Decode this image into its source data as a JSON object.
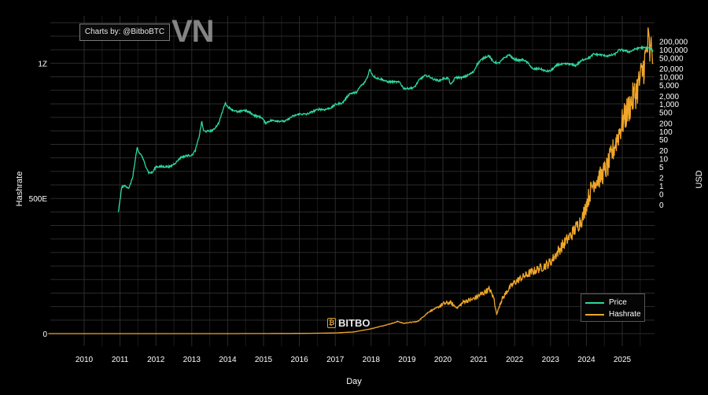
{
  "chart_data": {
    "type": "line",
    "xlabel": "Day",
    "ylabel_left": "Hashrate",
    "ylabel_right": "USD",
    "x_ticks": [
      "2010",
      "2011",
      "2012",
      "2013",
      "2014",
      "2015",
      "2016",
      "2017",
      "2018",
      "2019",
      "2020",
      "2021",
      "2022",
      "2023",
      "2024",
      "2025"
    ],
    "left_ticks": [
      {
        "label": "0",
        "value": 0
      },
      {
        "label": "500E",
        "value": 500
      },
      {
        "label": "1Z",
        "value": 1000
      }
    ],
    "right_ticks": [
      "200,000",
      "100,000",
      "50,000",
      "20,000",
      "10,000",
      "5,000",
      "2,000",
      "1,000",
      "500",
      "200",
      "100",
      "50",
      "20",
      "10",
      "5",
      "2",
      "1",
      "0",
      "0"
    ],
    "grid": true,
    "legend_position": "bottom-right",
    "series": [
      {
        "name": "Price",
        "color": "#2fd89a",
        "axis": "right",
        "points": [
          [
            2010.95,
            0.1
          ],
          [
            2011.0,
            0.3
          ],
          [
            2011.05,
            0.9
          ],
          [
            2011.15,
            1
          ],
          [
            2011.25,
            0.8
          ],
          [
            2011.35,
            2
          ],
          [
            2011.42,
            8
          ],
          [
            2011.48,
            25
          ],
          [
            2011.52,
            17
          ],
          [
            2011.6,
            13
          ],
          [
            2011.7,
            6
          ],
          [
            2011.8,
            3
          ],
          [
            2011.9,
            3
          ],
          [
            2012.0,
            5
          ],
          [
            2012.2,
            5
          ],
          [
            2012.4,
            5
          ],
          [
            2012.55,
            7
          ],
          [
            2012.7,
            11
          ],
          [
            2012.9,
            13
          ],
          [
            2013.0,
            13
          ],
          [
            2013.1,
            20
          ],
          [
            2013.2,
            60
          ],
          [
            2013.28,
            230
          ],
          [
            2013.33,
            100
          ],
          [
            2013.45,
            100
          ],
          [
            2013.6,
            110
          ],
          [
            2013.75,
            200
          ],
          [
            2013.85,
            500
          ],
          [
            2013.93,
            1100
          ],
          [
            2014.0,
            800
          ],
          [
            2014.15,
            600
          ],
          [
            2014.3,
            500
          ],
          [
            2014.45,
            600
          ],
          [
            2014.6,
            500
          ],
          [
            2014.75,
            380
          ],
          [
            2014.95,
            320
          ],
          [
            2015.05,
            200
          ],
          [
            2015.2,
            250
          ],
          [
            2015.4,
            240
          ],
          [
            2015.6,
            230
          ],
          [
            2015.8,
            350
          ],
          [
            2016.0,
            430
          ],
          [
            2016.2,
            420
          ],
          [
            2016.4,
            550
          ],
          [
            2016.55,
            650
          ],
          [
            2016.7,
            620
          ],
          [
            2016.9,
            750
          ],
          [
            2017.0,
            960
          ],
          [
            2017.2,
            1100
          ],
          [
            2017.4,
            2400
          ],
          [
            2017.6,
            2700
          ],
          [
            2017.7,
            4500
          ],
          [
            2017.8,
            5700
          ],
          [
            2017.9,
            10000
          ],
          [
            2017.96,
            19000
          ],
          [
            2018.05,
            11000
          ],
          [
            2018.15,
            9000
          ],
          [
            2018.3,
            8000
          ],
          [
            2018.45,
            6500
          ],
          [
            2018.6,
            6500
          ],
          [
            2018.8,
            6300
          ],
          [
            2018.9,
            3800
          ],
          [
            2019.0,
            3700
          ],
          [
            2019.2,
            4000
          ],
          [
            2019.35,
            8000
          ],
          [
            2019.5,
            11000
          ],
          [
            2019.6,
            10500
          ],
          [
            2019.75,
            8000
          ],
          [
            2019.9,
            7200
          ],
          [
            2020.0,
            8500
          ],
          [
            2020.15,
            9000
          ],
          [
            2020.22,
            5000
          ],
          [
            2020.35,
            9500
          ],
          [
            2020.55,
            9300
          ],
          [
            2020.7,
            11500
          ],
          [
            2020.85,
            15000
          ],
          [
            2020.95,
            28000
          ],
          [
            2021.05,
            40000
          ],
          [
            2021.15,
            50000
          ],
          [
            2021.28,
            60000
          ],
          [
            2021.4,
            36000
          ],
          [
            2021.55,
            31000
          ],
          [
            2021.7,
            48000
          ],
          [
            2021.85,
            65000
          ],
          [
            2021.95,
            47000
          ],
          [
            2022.1,
            40000
          ],
          [
            2022.25,
            42000
          ],
          [
            2022.4,
            30000
          ],
          [
            2022.5,
            19000
          ],
          [
            2022.7,
            20000
          ],
          [
            2022.87,
            16000
          ],
          [
            2023.0,
            16500
          ],
          [
            2023.2,
            28000
          ],
          [
            2023.5,
            30000
          ],
          [
            2023.7,
            26000
          ],
          [
            2023.9,
            42000
          ],
          [
            2024.1,
            52000
          ],
          [
            2024.2,
            68000
          ],
          [
            2024.4,
            64000
          ],
          [
            2024.6,
            58000
          ],
          [
            2024.8,
            68000
          ],
          [
            2024.9,
            95000
          ],
          [
            2025.0,
            97000
          ],
          [
            2025.2,
            82000
          ],
          [
            2025.35,
            103000
          ],
          [
            2025.5,
            118000
          ],
          [
            2025.65,
            115000
          ],
          [
            2025.72,
            120000
          ],
          [
            2025.78,
            108000
          ],
          [
            2025.83,
            95000
          ],
          [
            2025.86,
            88000
          ]
        ]
      },
      {
        "name": "Hashrate",
        "color": "#f0a629",
        "axis": "left",
        "points": [
          [
            2009.0,
            0
          ],
          [
            2013.0,
            0.001
          ],
          [
            2014.0,
            0.05
          ],
          [
            2015.0,
            0.35
          ],
          [
            2016.0,
            0.8
          ],
          [
            2016.5,
            1.5
          ],
          [
            2017.0,
            2.5
          ],
          [
            2017.5,
            6
          ],
          [
            2018.0,
            18
          ],
          [
            2018.5,
            35
          ],
          [
            2018.75,
            45
          ],
          [
            2018.9,
            38
          ],
          [
            2019.0,
            40
          ],
          [
            2019.3,
            45
          ],
          [
            2019.6,
            80
          ],
          [
            2019.9,
            100
          ],
          [
            2020.0,
            110
          ],
          [
            2020.2,
            115
          ],
          [
            2020.4,
            95
          ],
          [
            2020.6,
            120
          ],
          [
            2020.8,
            125
          ],
          [
            2021.0,
            140
          ],
          [
            2021.3,
            165
          ],
          [
            2021.42,
            130
          ],
          [
            2021.5,
            70
          ],
          [
            2021.6,
            115
          ],
          [
            2021.8,
            160
          ],
          [
            2022.0,
            190
          ],
          [
            2022.3,
            215
          ],
          [
            2022.6,
            235
          ],
          [
            2022.9,
            255
          ],
          [
            2023.0,
            265
          ],
          [
            2023.3,
            320
          ],
          [
            2023.6,
            370
          ],
          [
            2023.9,
            430
          ],
          [
            2024.0,
            480
          ],
          [
            2024.2,
            560
          ],
          [
            2024.4,
            580
          ],
          [
            2024.6,
            620
          ],
          [
            2024.8,
            700
          ],
          [
            2025.0,
            780
          ],
          [
            2025.2,
            840
          ],
          [
            2025.4,
            900
          ],
          [
            2025.55,
            960
          ],
          [
            2025.65,
            1020
          ],
          [
            2025.73,
            1080
          ],
          [
            2025.78,
            1020
          ],
          [
            2025.83,
            1080
          ],
          [
            2025.86,
            1000
          ]
        ]
      }
    ]
  },
  "watermarks": {
    "credit": "Charts by: @BitboBTC",
    "vn_logo": "VN",
    "bitbo": "BITBO"
  }
}
